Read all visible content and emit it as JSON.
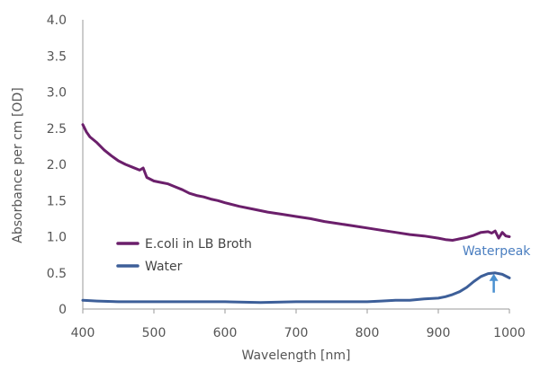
{
  "chart_data": {
    "type": "line",
    "xlabel": "Wavelength [nm]",
    "ylabel": "Absorbance per cm [OD]",
    "xlim": [
      400,
      1000
    ],
    "ylim": [
      0,
      4.0
    ],
    "x_ticks": [
      "400",
      "500",
      "600",
      "700",
      "800",
      "900",
      "1000"
    ],
    "y_ticks": [
      "0",
      "0.5",
      "1.0",
      "1.5",
      "2.0",
      "2.5",
      "3.0",
      "3.5",
      "4.0"
    ],
    "grid": false,
    "legend_position": "bottom-left",
    "series": [
      {
        "name": "E.coli in LB Broth",
        "color": "#6b1f6b",
        "x": [
          400,
          405,
          410,
          420,
          430,
          440,
          450,
          460,
          470,
          480,
          485,
          490,
          500,
          510,
          520,
          530,
          540,
          550,
          560,
          570,
          580,
          590,
          600,
          620,
          640,
          660,
          680,
          700,
          720,
          740,
          760,
          780,
          800,
          820,
          840,
          860,
          880,
          900,
          910,
          920,
          930,
          940,
          950,
          960,
          970,
          975,
          980,
          985,
          990,
          995,
          1000
        ],
        "y": [
          2.55,
          2.45,
          2.38,
          2.3,
          2.2,
          2.12,
          2.05,
          2.0,
          1.96,
          1.92,
          1.95,
          1.82,
          1.77,
          1.75,
          1.73,
          1.69,
          1.65,
          1.6,
          1.57,
          1.55,
          1.52,
          1.5,
          1.47,
          1.42,
          1.38,
          1.34,
          1.31,
          1.28,
          1.25,
          1.21,
          1.18,
          1.15,
          1.12,
          1.09,
          1.06,
          1.03,
          1.01,
          0.98,
          0.96,
          0.95,
          0.97,
          0.99,
          1.02,
          1.06,
          1.07,
          1.05,
          1.08,
          0.98,
          1.06,
          1.01,
          1.0
        ]
      },
      {
        "name": "Water",
        "color": "#3d5f99",
        "x": [
          400,
          420,
          450,
          500,
          550,
          600,
          650,
          700,
          750,
          800,
          820,
          840,
          860,
          880,
          900,
          910,
          920,
          930,
          940,
          950,
          960,
          970,
          980,
          990,
          1000
        ],
        "y": [
          0.12,
          0.11,
          0.1,
          0.1,
          0.1,
          0.1,
          0.09,
          0.1,
          0.1,
          0.1,
          0.11,
          0.12,
          0.12,
          0.14,
          0.15,
          0.17,
          0.2,
          0.24,
          0.3,
          0.38,
          0.45,
          0.49,
          0.5,
          0.48,
          0.43
        ]
      }
    ],
    "annotations": [
      {
        "text": "Waterpeak",
        "x": 978,
        "y": 0.5,
        "color": "#4a7ec0",
        "arrow_color": "#4a90d0"
      }
    ]
  }
}
